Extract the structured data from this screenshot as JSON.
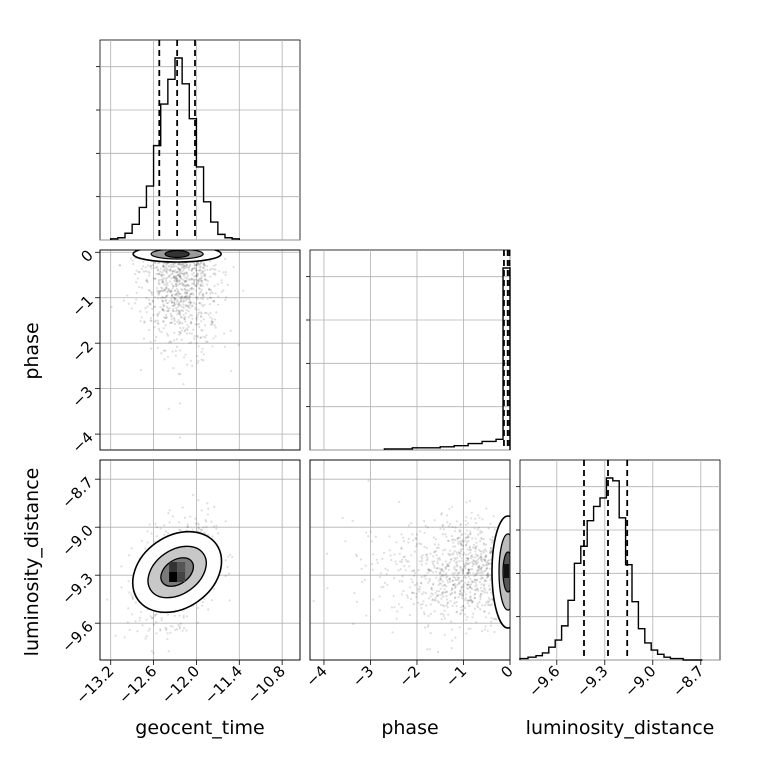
{
  "chart_data": {
    "type": "corner",
    "parameters": [
      "geocent_time",
      "phase",
      "luminosity_distance"
    ],
    "grid": true,
    "quantile_lines": "dashed",
    "panels": [
      {
        "type": "histogram",
        "parameter": "geocent_time",
        "xlim": [
          -13.35,
          -10.55
        ],
        "bin_edges": [
          -13.2,
          -13.1,
          -13.0,
          -12.9,
          -12.8,
          -12.7,
          -12.6,
          -12.5,
          -12.4,
          -12.3,
          -12.2,
          -12.1,
          -12.0,
          -11.9,
          -11.8,
          -11.7,
          -11.6,
          -11.5,
          -11.4
        ],
        "counts": [
          1,
          2,
          6,
          14,
          29,
          48,
          84,
          121,
          143,
          162,
          139,
          108,
          65,
          34,
          16,
          5,
          2,
          1
        ],
        "quantiles": [
          -12.52,
          -12.27,
          -12.02
        ]
      },
      {
        "type": "histogram",
        "parameter": "phase",
        "xlim": [
          -4.3,
          0.0
        ],
        "bin_edges": [
          -2.7,
          -2.1,
          -1.5,
          -1.2,
          -0.9,
          -0.6,
          -0.3,
          -0.15,
          0.0
        ],
        "counts": [
          1,
          2,
          3,
          4,
          6,
          8,
          10,
          170
        ],
        "quantiles": [
          -0.13,
          -0.05,
          -0.01
        ]
      },
      {
        "type": "histogram",
        "parameter": "luminosity_distance",
        "xlim": [
          -9.83,
          -8.58
        ],
        "bin_edges": [
          -9.83,
          -9.78,
          -9.73,
          -9.69,
          -9.65,
          -9.61,
          -9.57,
          -9.53,
          -9.49,
          -9.45,
          -9.41,
          -9.37,
          -9.33,
          -9.29,
          -9.25,
          -9.21,
          -9.17,
          -9.13,
          -9.09,
          -9.05,
          -9.01,
          -8.97,
          -8.93,
          -8.89,
          -8.85,
          -8.81,
          -8.77,
          -8.73,
          -8.69
        ],
        "counts": [
          1,
          2,
          3,
          5,
          9,
          14,
          24,
          42,
          68,
          80,
          98,
          108,
          114,
          128,
          126,
          100,
          67,
          41,
          22,
          12,
          7,
          4,
          2,
          1,
          1,
          0,
          0,
          0
        ],
        "quantiles": [
          -9.43,
          -9.28,
          -9.16
        ]
      },
      {
        "type": "2d-density",
        "x": "geocent_time",
        "y": "phase",
        "xlim": [
          -13.35,
          -10.55
        ],
        "ylim": [
          -4.35,
          0.05
        ],
        "peak": [
          -12.27,
          -0.05
        ]
      },
      {
        "type": "2d-density",
        "x": "geocent_time",
        "y": "luminosity_distance",
        "xlim": [
          -13.35,
          -10.55
        ],
        "ylim": [
          -9.83,
          -8.58
        ],
        "peak": [
          -12.27,
          -9.28
        ]
      },
      {
        "type": "2d-density",
        "x": "phase",
        "y": "luminosity_distance",
        "xlim": [
          -4.3,
          0.0
        ],
        "ylim": [
          -9.83,
          -8.58
        ],
        "peak": [
          -0.05,
          -9.28
        ]
      }
    ],
    "ticks": {
      "geocent_time": {
        "values": [
          -13.2,
          -12.6,
          -12.0,
          -11.4,
          -10.8
        ],
        "labels": [
          "−13.2",
          "−12.6",
          "−12.0",
          "−11.4",
          "−10.8"
        ]
      },
      "phase": {
        "values": [
          -4,
          -3,
          -2,
          -1,
          0
        ],
        "labels": [
          "−4",
          "−3",
          "−2",
          "−1",
          "0"
        ]
      },
      "luminosity_distance": {
        "values": [
          -9.6,
          -9.3,
          -9.0,
          -8.7
        ],
        "labels": [
          "−9.6",
          "−9.3",
          "−9.0",
          "−8.7"
        ]
      }
    },
    "axis_labels": {
      "x": [
        "geocent_time",
        "phase",
        "luminosity_distance"
      ],
      "y": [
        "phase",
        "luminosity_distance"
      ]
    }
  }
}
